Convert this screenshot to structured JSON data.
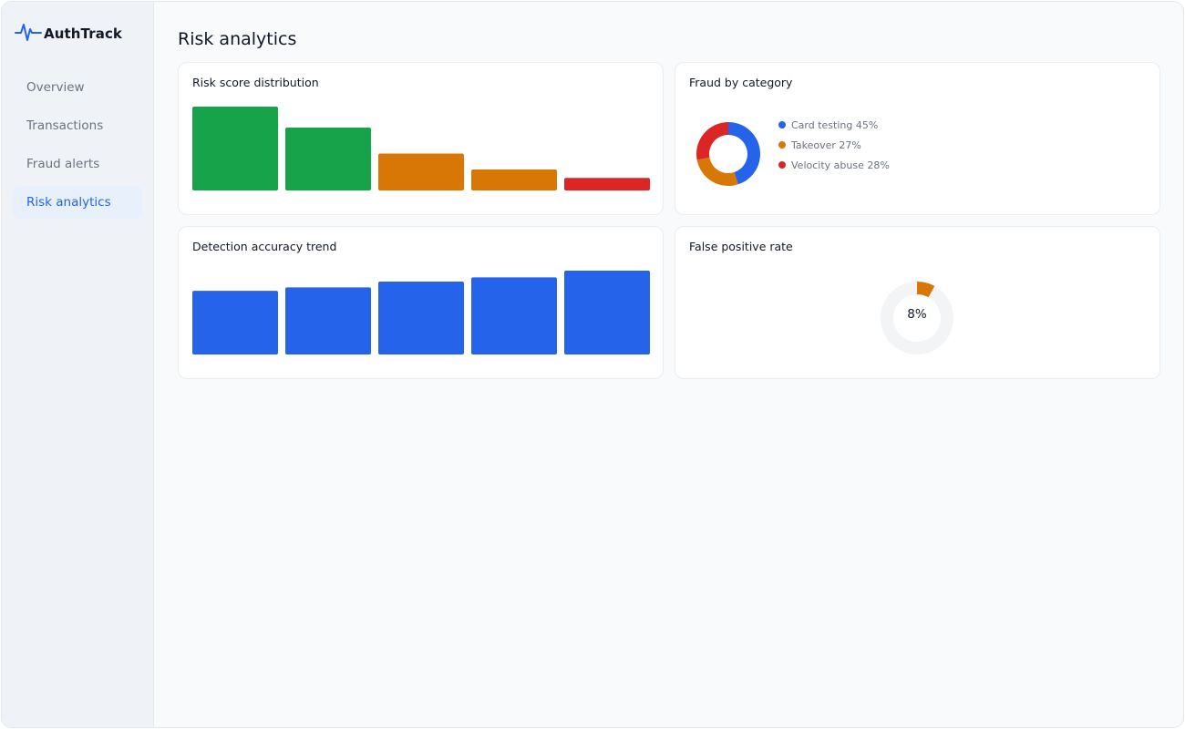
{
  "app": {
    "name": "AuthTrack",
    "logo_icon": "pulse-icon",
    "accent": "#2563eb"
  },
  "sidebar": {
    "items": [
      {
        "label": "Overview",
        "active": false
      },
      {
        "label": "Transactions",
        "active": false
      },
      {
        "label": "Fraud alerts",
        "active": false
      },
      {
        "label": "Risk analytics",
        "active": true
      }
    ]
  },
  "page": {
    "title": "Risk analytics"
  },
  "cards": {
    "risk_score": {
      "title": "Risk score distribution"
    },
    "fraud_category": {
      "title": "Fraud by category"
    },
    "detection_trend": {
      "title": "Detection accuracy trend"
    },
    "false_positive": {
      "title": "False positive rate"
    }
  },
  "chart_data": [
    {
      "type": "bar",
      "title": "Risk score distribution",
      "values": [
        100,
        75,
        44,
        25,
        15
      ],
      "colors": [
        "#16a34a",
        "#16a34a",
        "#d97706",
        "#d97706",
        "#dc2626"
      ]
    },
    {
      "type": "pie",
      "title": "Fraud by category",
      "slices": [
        {
          "label": "Card testing 45%",
          "value": 45,
          "color": "#2563eb"
        },
        {
          "label": "Takeover 27%",
          "value": 27,
          "color": "#d97706"
        },
        {
          "label": "Velocity abuse 28%",
          "value": 28,
          "color": "#dc2626"
        }
      ]
    },
    {
      "type": "bar",
      "title": "Detection accuracy trend",
      "values": [
        76,
        80,
        87,
        92,
        100
      ],
      "colors": [
        "#2563eb",
        "#2563eb",
        "#2563eb",
        "#2563eb",
        "#2563eb"
      ]
    },
    {
      "type": "pie",
      "title": "False positive rate",
      "value": 8,
      "label": "8%",
      "color": "#d97706",
      "track_color": "#f3f4f6"
    }
  ]
}
